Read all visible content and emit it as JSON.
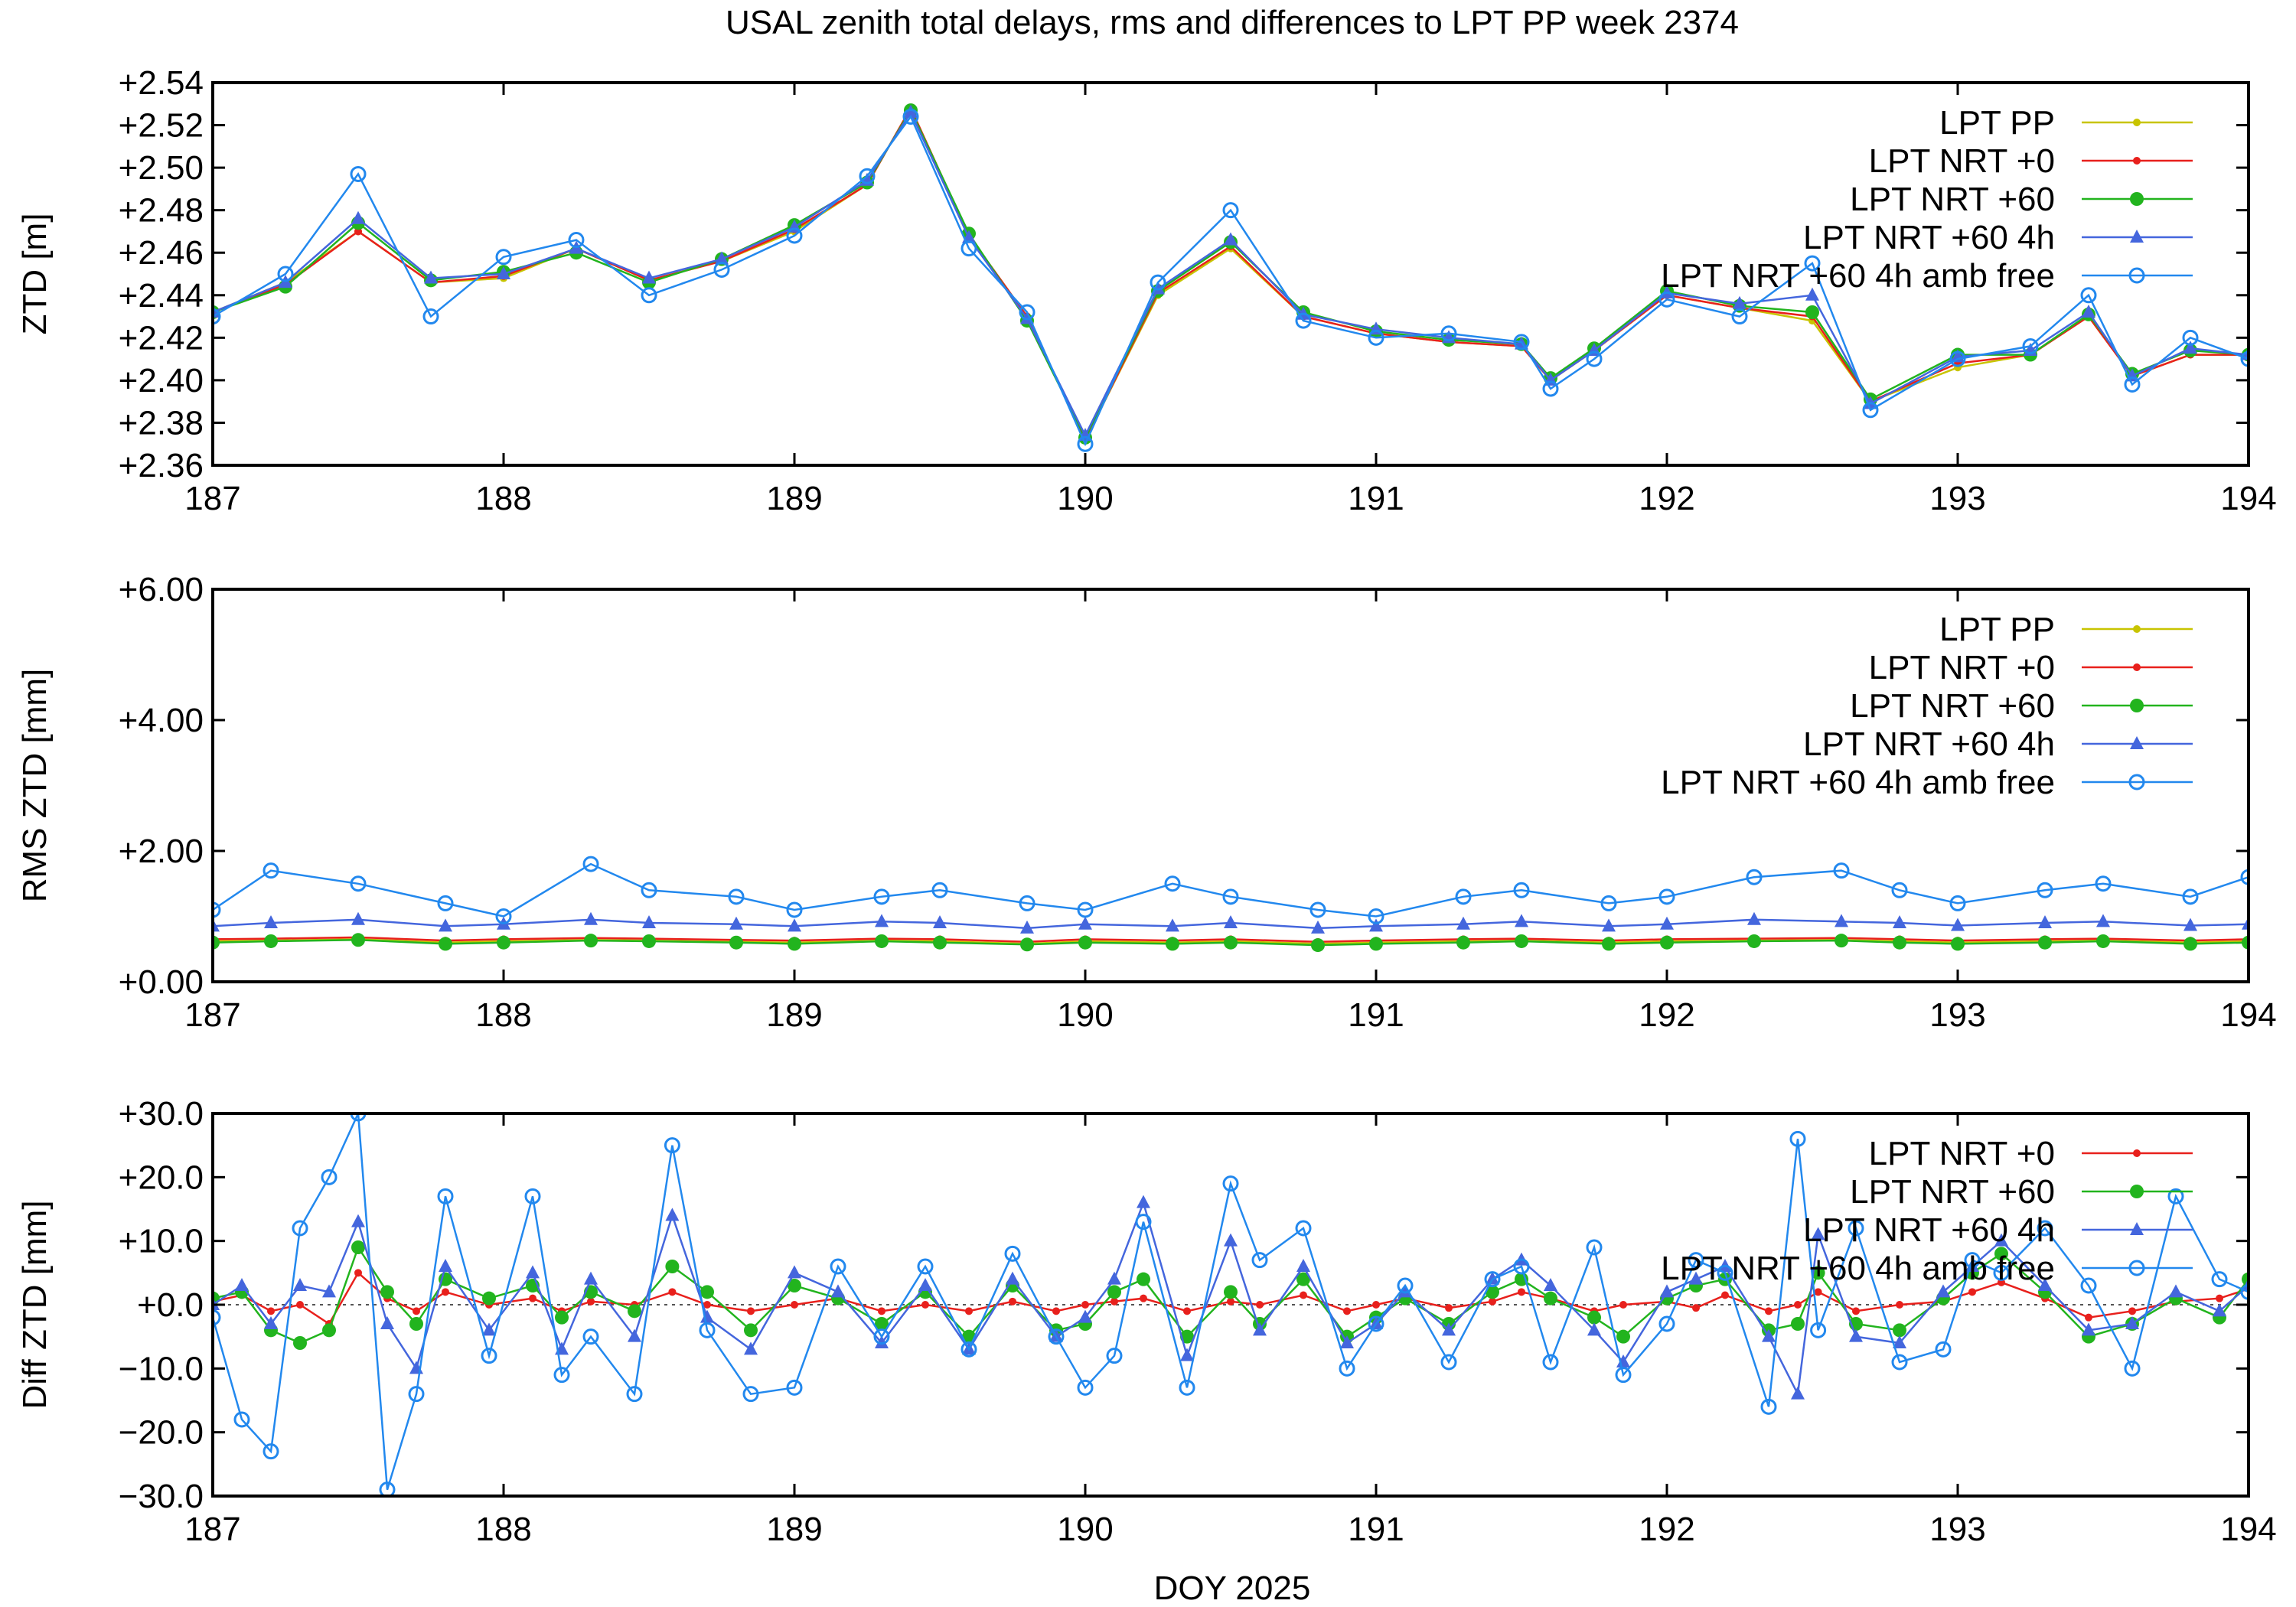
{
  "title": "USAL zenith total delays, rms and differences to LPT PP week 2374",
  "xlabel": "DOY 2025",
  "colors": {
    "LPT PP": "#c8c400",
    "LPT NRT +0": "#e8201c",
    "LPT NRT +60": "#22b41e",
    "LPT NRT +60 4h": "#4466dd",
    "LPT NRT +60 4h amb free": "#2288ee"
  },
  "chart_data": [
    {
      "type": "line",
      "panel": "ztd",
      "ylabel": "ZTD [m]",
      "xlim": [
        187,
        194
      ],
      "ylim": [
        2.36,
        2.54
      ],
      "xticks": [
        "187",
        "188",
        "189",
        "190",
        "191",
        "192",
        "193",
        "194"
      ],
      "yticks": [
        "+2.36",
        "+2.38",
        "+2.40",
        "+2.42",
        "+2.44",
        "+2.46",
        "+2.48",
        "+2.50",
        "+2.52",
        "+2.54"
      ],
      "legend": [
        "LPT PP",
        "LPT NRT +0",
        "LPT NRT +60",
        "LPT NRT +60 4h",
        "LPT NRT +60 4h amb free"
      ],
      "legend_position": "top-right",
      "x": [
        187.0,
        187.25,
        187.5,
        187.75,
        188.0,
        188.25,
        188.5,
        188.75,
        189.0,
        189.25,
        189.4,
        189.6,
        189.8,
        190.0,
        190.25,
        190.5,
        190.75,
        191.0,
        191.25,
        191.5,
        191.6,
        191.75,
        192.0,
        192.25,
        192.5,
        192.7,
        193.0,
        193.25,
        193.45,
        193.6,
        193.8,
        194.0
      ],
      "series": [
        {
          "name": "LPT PP",
          "values": [
            2.432,
            2.446,
            2.47,
            2.446,
            2.448,
            2.462,
            2.447,
            2.456,
            2.47,
            2.492,
            2.528,
            2.468,
            2.43,
            2.372,
            2.44,
            2.462,
            2.43,
            2.422,
            2.418,
            2.416,
            2.4,
            2.414,
            2.44,
            2.434,
            2.428,
            2.39,
            2.406,
            2.412,
            2.43,
            2.402,
            2.412,
            2.412
          ]
        },
        {
          "name": "LPT NRT +0",
          "values": [
            2.432,
            2.445,
            2.47,
            2.446,
            2.449,
            2.462,
            2.447,
            2.456,
            2.471,
            2.492,
            2.528,
            2.468,
            2.43,
            2.372,
            2.441,
            2.463,
            2.43,
            2.422,
            2.418,
            2.416,
            2.4,
            2.414,
            2.44,
            2.434,
            2.43,
            2.39,
            2.408,
            2.412,
            2.43,
            2.402,
            2.412,
            2.412
          ]
        },
        {
          "name": "LPT NRT +60",
          "values": [
            2.432,
            2.444,
            2.474,
            2.447,
            2.451,
            2.46,
            2.446,
            2.457,
            2.473,
            2.493,
            2.527,
            2.469,
            2.428,
            2.373,
            2.442,
            2.465,
            2.432,
            2.423,
            2.419,
            2.417,
            2.401,
            2.415,
            2.442,
            2.435,
            2.432,
            2.391,
            2.412,
            2.412,
            2.431,
            2.403,
            2.414,
            2.412
          ]
        },
        {
          "name": "LPT NRT +60 4h",
          "values": [
            2.432,
            2.446,
            2.476,
            2.448,
            2.45,
            2.462,
            2.448,
            2.457,
            2.472,
            2.494,
            2.526,
            2.467,
            2.429,
            2.374,
            2.443,
            2.466,
            2.431,
            2.424,
            2.42,
            2.417,
            2.4,
            2.414,
            2.441,
            2.436,
            2.44,
            2.389,
            2.411,
            2.414,
            2.432,
            2.402,
            2.415,
            2.412
          ]
        },
        {
          "name": "LPT NRT +60 4h amb free",
          "values": [
            2.43,
            2.45,
            2.497,
            2.43,
            2.458,
            2.466,
            2.44,
            2.452,
            2.468,
            2.496,
            2.524,
            2.462,
            2.432,
            2.37,
            2.446,
            2.48,
            2.428,
            2.42,
            2.422,
            2.418,
            2.396,
            2.41,
            2.438,
            2.43,
            2.455,
            2.386,
            2.41,
            2.416,
            2.44,
            2.398,
            2.42,
            2.41
          ]
        }
      ]
    },
    {
      "type": "line",
      "panel": "rms",
      "ylabel": "RMS ZTD [mm]",
      "xlim": [
        187,
        194
      ],
      "ylim": [
        0,
        6
      ],
      "xticks": [
        "187",
        "188",
        "189",
        "190",
        "191",
        "192",
        "193",
        "194"
      ],
      "yticks": [
        "+0.00",
        "+2.00",
        "+4.00",
        "+6.00"
      ],
      "legend": [
        "LPT PP",
        "LPT NRT +0",
        "LPT NRT +60",
        "LPT NRT +60 4h",
        "LPT NRT +60 4h amb free"
      ],
      "legend_position": "top-right",
      "x": [
        187.0,
        187.2,
        187.5,
        187.8,
        188.0,
        188.3,
        188.5,
        188.8,
        189.0,
        189.3,
        189.5,
        189.8,
        190.0,
        190.3,
        190.5,
        190.8,
        191.0,
        191.3,
        191.5,
        191.8,
        192.0,
        192.3,
        192.6,
        192.8,
        193.0,
        193.3,
        193.5,
        193.8,
        194.0
      ],
      "series": [
        {
          "name": "LPT PP",
          "values": [
            0.62,
            0.63,
            0.65,
            0.6,
            0.62,
            0.64,
            0.63,
            0.61,
            0.6,
            0.63,
            0.62,
            0.58,
            0.62,
            0.6,
            0.62,
            0.58,
            0.6,
            0.62,
            0.63,
            0.6,
            0.62,
            0.63,
            0.64,
            0.62,
            0.6,
            0.62,
            0.63,
            0.6,
            0.62
          ]
        },
        {
          "name": "LPT NRT +0",
          "values": [
            0.65,
            0.66,
            0.68,
            0.63,
            0.65,
            0.67,
            0.66,
            0.64,
            0.63,
            0.66,
            0.65,
            0.61,
            0.65,
            0.63,
            0.65,
            0.61,
            0.63,
            0.65,
            0.66,
            0.63,
            0.65,
            0.66,
            0.67,
            0.65,
            0.63,
            0.65,
            0.66,
            0.63,
            0.65
          ]
        },
        {
          "name": "LPT NRT +60",
          "values": [
            0.6,
            0.62,
            0.64,
            0.58,
            0.6,
            0.63,
            0.62,
            0.6,
            0.58,
            0.62,
            0.6,
            0.57,
            0.6,
            0.58,
            0.6,
            0.56,
            0.58,
            0.6,
            0.62,
            0.58,
            0.6,
            0.62,
            0.63,
            0.6,
            0.58,
            0.6,
            0.62,
            0.58,
            0.6
          ]
        },
        {
          "name": "LPT NRT +60 4h",
          "values": [
            0.85,
            0.9,
            0.95,
            0.85,
            0.88,
            0.95,
            0.9,
            0.88,
            0.85,
            0.92,
            0.9,
            0.82,
            0.88,
            0.85,
            0.9,
            0.82,
            0.85,
            0.88,
            0.92,
            0.85,
            0.88,
            0.95,
            0.92,
            0.9,
            0.86,
            0.9,
            0.92,
            0.86,
            0.88
          ]
        },
        {
          "name": "LPT NRT +60 4h amb free",
          "values": [
            1.1,
            1.7,
            1.5,
            1.2,
            1.0,
            1.8,
            1.4,
            1.3,
            1.1,
            1.3,
            1.4,
            1.2,
            1.1,
            1.5,
            1.3,
            1.1,
            1.0,
            1.3,
            1.4,
            1.2,
            1.3,
            1.6,
            1.7,
            1.4,
            1.2,
            1.4,
            1.5,
            1.3,
            1.6
          ]
        }
      ]
    },
    {
      "type": "line",
      "panel": "diff",
      "ylabel": "Diff ZTD [mm]",
      "xlim": [
        187,
        194
      ],
      "ylim": [
        -30,
        30
      ],
      "xticks": [
        "187",
        "188",
        "189",
        "190",
        "191",
        "192",
        "193",
        "194"
      ],
      "yticks": [
        "−30.0",
        "−20.0",
        "−10.0",
        "+0.0",
        "+10.0",
        "+20.0",
        "+30.0"
      ],
      "legend": [
        "LPT NRT +0",
        "LPT NRT +60",
        "LPT NRT +60 4h",
        "LPT NRT +60 4h amb free"
      ],
      "legend_position": "top-right",
      "x": [
        187.0,
        187.1,
        187.2,
        187.3,
        187.4,
        187.5,
        187.6,
        187.7,
        187.8,
        187.95,
        188.1,
        188.2,
        188.3,
        188.45,
        188.58,
        188.7,
        188.85,
        189.0,
        189.15,
        189.3,
        189.45,
        189.6,
        189.75,
        189.9,
        190.0,
        190.1,
        190.2,
        190.35,
        190.5,
        190.6,
        190.75,
        190.9,
        191.0,
        191.1,
        191.25,
        191.4,
        191.5,
        191.6,
        191.75,
        191.85,
        192.0,
        192.1,
        192.2,
        192.35,
        192.45,
        192.52,
        192.65,
        192.8,
        192.95,
        193.05,
        193.15,
        193.3,
        193.45,
        193.6,
        193.75,
        193.9,
        194.0
      ],
      "series": [
        {
          "name": "LPT NRT +0",
          "values": [
            0.5,
            1.5,
            -1.0,
            0.0,
            -3.0,
            5.0,
            1.0,
            -1.0,
            2.0,
            0.0,
            1.0,
            -1.0,
            0.5,
            0.0,
            2.0,
            0.0,
            -1.0,
            0.0,
            1.0,
            -1.0,
            0.0,
            -1.0,
            0.5,
            -1.0,
            0.0,
            0.5,
            1.0,
            -1.0,
            0.5,
            0.0,
            1.5,
            -1.0,
            0.0,
            1.0,
            -0.5,
            0.5,
            2.0,
            1.0,
            -1.0,
            0.0,
            0.5,
            -0.5,
            1.5,
            -1.0,
            0.0,
            2.0,
            -1.0,
            0.0,
            0.5,
            2.0,
            3.5,
            1.0,
            -2.0,
            -1.0,
            0.5,
            1.0,
            2.5
          ]
        },
        {
          "name": "LPT NRT +60",
          "values": [
            1.0,
            2.0,
            -4.0,
            -6.0,
            -4.0,
            9.0,
            2.0,
            -3.0,
            4.0,
            1.0,
            3.0,
            -2.0,
            2.0,
            -1.0,
            6.0,
            2.0,
            -4.0,
            3.0,
            1.0,
            -3.0,
            2.0,
            -5.0,
            3.0,
            -4.0,
            -3.0,
            2.0,
            4.0,
            -5.0,
            2.0,
            -3.0,
            4.0,
            -5.0,
            -2.0,
            1.0,
            -3.0,
            2.0,
            4.0,
            1.0,
            -2.0,
            -5.0,
            1.0,
            3.0,
            4.0,
            -4.0,
            -3.0,
            5.0,
            -3.0,
            -4.0,
            1.0,
            5.0,
            8.0,
            2.0,
            -5.0,
            -3.0,
            1.0,
            -2.0,
            4.0
          ]
        },
        {
          "name": "LPT NRT +60 4h",
          "values": [
            0.0,
            3.0,
            -3.0,
            3.0,
            2.0,
            13.0,
            -3.0,
            -10.0,
            6.0,
            -4.0,
            5.0,
            -7.0,
            4.0,
            -5.0,
            14.0,
            -2.0,
            -7.0,
            5.0,
            2.0,
            -6.0,
            3.0,
            -7.0,
            4.0,
            -5.0,
            -2.0,
            4.0,
            16.0,
            -8.0,
            10.0,
            -4.0,
            6.0,
            -6.0,
            -3.0,
            2.0,
            -4.0,
            4.0,
            7.0,
            3.0,
            -4.0,
            -9.0,
            2.0,
            4.0,
            6.0,
            -5.0,
            -14.0,
            11.0,
            -5.0,
            -6.0,
            2.0,
            6.0,
            10.0,
            3.0,
            -4.0,
            -3.0,
            2.0,
            -1.0,
            3.0
          ]
        },
        {
          "name": "LPT NRT +60 4h amb free",
          "values": [
            -2.0,
            -18.0,
            -23.0,
            12.0,
            20.0,
            30.0,
            -29.0,
            -14.0,
            17.0,
            -8.0,
            17.0,
            -11.0,
            -5.0,
            -14.0,
            25.0,
            -4.0,
            -14.0,
            -13.0,
            6.0,
            -5.0,
            6.0,
            -7.0,
            8.0,
            -5.0,
            -13.0,
            -8.0,
            13.0,
            -13.0,
            19.0,
            7.0,
            12.0,
            -10.0,
            -3.0,
            3.0,
            -9.0,
            4.0,
            6.0,
            -9.0,
            9.0,
            -11.0,
            -3.0,
            7.0,
            5.0,
            -16.0,
            26.0,
            -4.0,
            12.0,
            -9.0,
            -7.0,
            7.0,
            5.0,
            12.0,
            3.0,
            -10.0,
            17.0,
            4.0,
            2.0
          ]
        }
      ]
    }
  ]
}
